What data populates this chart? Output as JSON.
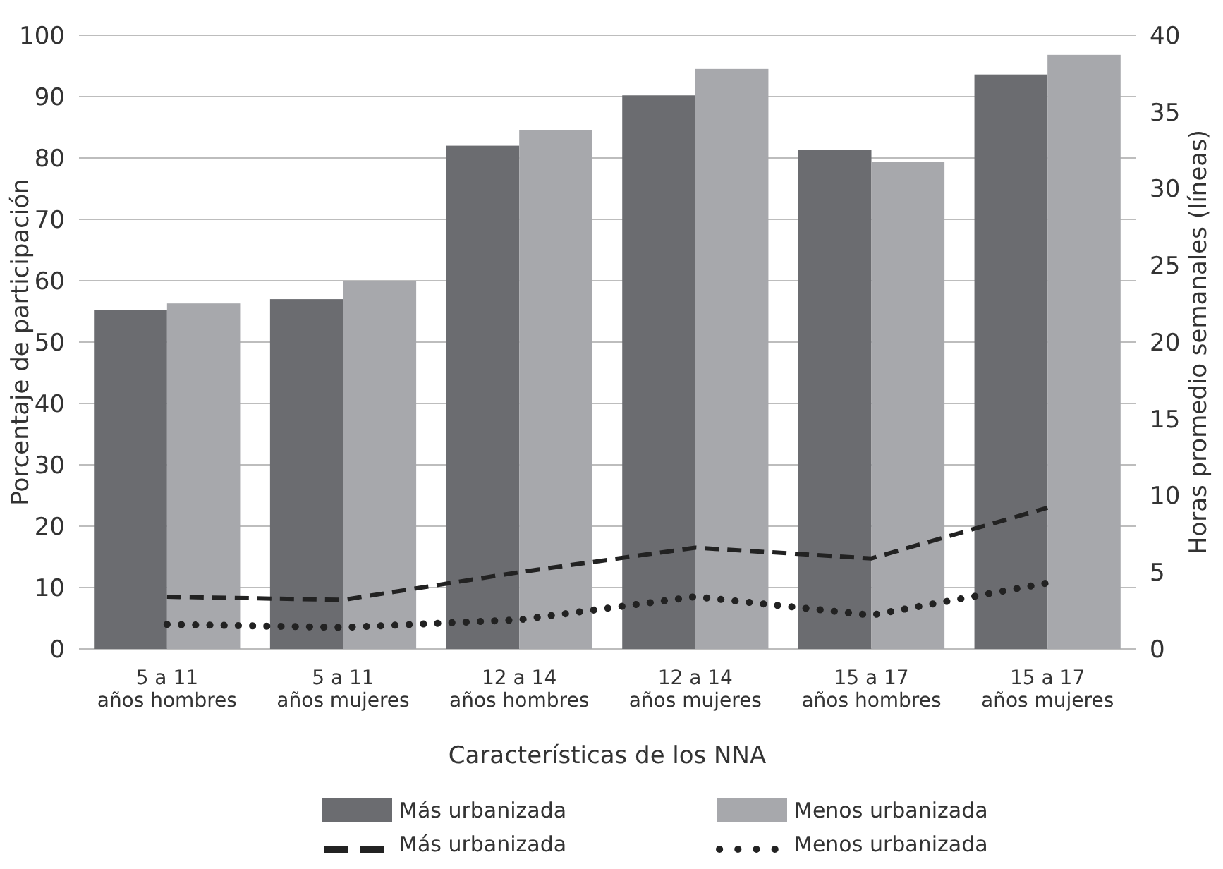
{
  "chart_data": {
    "type": "bar",
    "xlabel": "Características de los NNA",
    "ylabel": "Porcentaje de participación",
    "y2label": "Horas promedio semanales (líneas)",
    "categories": [
      "5 a 11 años hombres",
      "5 a 11 años mujeres",
      "12 a 14 años hombres",
      "12 a 14 años mujeres",
      "15 a 17 años hombres",
      "15 a 17 años mujeres"
    ],
    "series": [
      {
        "name": "Más urbanizada",
        "color": "#6b6c70",
        "values": [
          55.2,
          57.0,
          82.0,
          90.2,
          81.3,
          93.6
        ]
      },
      {
        "name": "Menos urbanizada",
        "color": "#a7a8ac",
        "values": [
          56.3,
          59.9,
          84.5,
          94.5,
          79.4,
          96.8
        ]
      },
      {
        "name": "Más urbanizada",
        "type": "line",
        "axis": "y2",
        "line_style": "dashed",
        "color": "#222222",
        "values": [
          3.4,
          3.2,
          5.0,
          6.6,
          5.9,
          9.2
        ]
      },
      {
        "name": "Menos urbanizada",
        "type": "line",
        "axis": "y2",
        "line_style": "dotted",
        "color": "#222222",
        "values": [
          1.6,
          1.4,
          1.9,
          3.4,
          2.2,
          4.3
        ]
      }
    ],
    "ylim": [
      0,
      100
    ],
    "yticks": [
      0,
      10,
      20,
      30,
      40,
      50,
      60,
      70,
      80,
      90,
      100
    ],
    "y2lim": [
      0,
      40
    ],
    "y2ticks": [
      0,
      5,
      10,
      15,
      20,
      25,
      30,
      35,
      40
    ],
    "grid": "y",
    "legend": "bottom"
  }
}
